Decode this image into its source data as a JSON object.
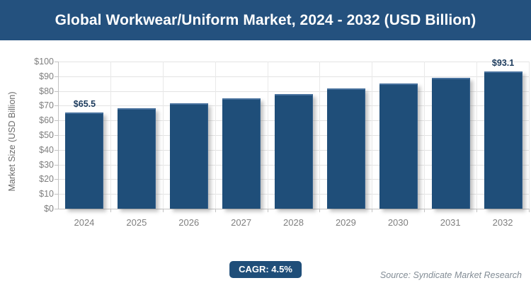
{
  "header": {
    "title": "Global Workwear/Uniform Market, 2024 - 2032 (USD Billion)"
  },
  "chart_data": {
    "type": "bar",
    "title": "Global Workwear/Uniform Market, 2024 - 2032 (USD Billion)",
    "categories": [
      "2024",
      "2025",
      "2026",
      "2027",
      "2028",
      "2029",
      "2030",
      "2031",
      "2032"
    ],
    "values": [
      65.5,
      68.4,
      71.5,
      74.8,
      78.1,
      81.6,
      85.3,
      89.1,
      93.1
    ],
    "bar_labels": [
      "$65.5",
      "",
      "",
      "",
      "",
      "",
      "",
      "",
      "$93.1"
    ],
    "xlabel": "",
    "ylabel": "Market Size (USD Billion)",
    "ylim": [
      0,
      100
    ],
    "ytick_step": 10,
    "yticks": [
      "$0",
      "$10",
      "$20",
      "$30",
      "$40",
      "$50",
      "$60",
      "$70",
      "$80",
      "$90",
      "$100"
    ],
    "grid": true,
    "legend_position": "none",
    "bar_color": "#1F4E79",
    "value_label_color": "#1B3A5C",
    "axis_text_color": "#7F7F7F"
  },
  "footer": {
    "cagr_label": "CAGR: 4.5%",
    "source": "Source: Syndicate Market Research"
  },
  "colors": {
    "header_bg": "#24517E",
    "header_text": "#FFFFFF",
    "bar": "#1F4E79",
    "gridline": "#E3E3E3",
    "axis_line": "#C2C2C2"
  }
}
